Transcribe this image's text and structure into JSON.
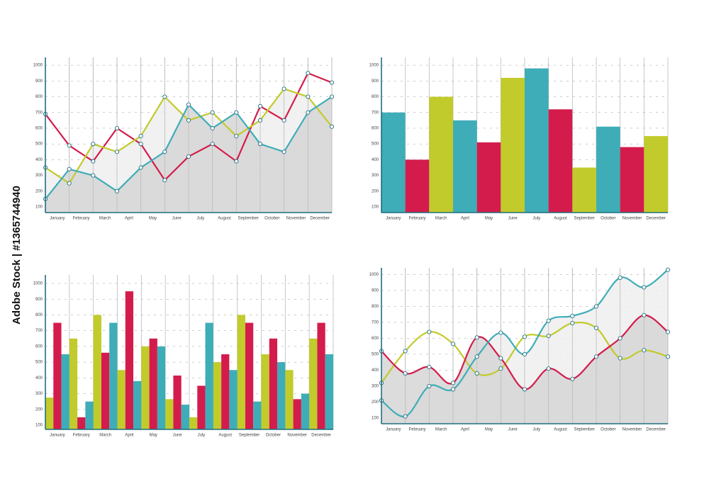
{
  "watermark": "Adobe Stock | #1365744940",
  "chart_data": [
    {
      "type": "line",
      "smooth": false,
      "categories": [
        "January",
        "February",
        "March",
        "April",
        "May",
        "June",
        "July",
        "August",
        "September",
        "October",
        "November",
        "December",
        null
      ],
      "series": [
        {
          "name": null,
          "color": "#d41c4c",
          "values": [
            690,
            490,
            390,
            600,
            500,
            270,
            420,
            500,
            390,
            740,
            650,
            950,
            890
          ]
        },
        {
          "name": null,
          "color": "#c1cb2b",
          "values": [
            350,
            250,
            500,
            450,
            550,
            800,
            650,
            700,
            550,
            650,
            850,
            800,
            610
          ]
        },
        {
          "name": null,
          "color": "#3eadb8",
          "values": [
            150,
            340,
            300,
            200,
            350,
            450,
            750,
            600,
            700,
            500,
            450,
            700,
            800
          ]
        }
      ],
      "ylim": [
        64,
        1050
      ],
      "yticks": [
        100,
        200,
        300,
        400,
        500,
        600,
        700,
        800,
        900,
        1000
      ],
      "grid": true
    },
    {
      "type": "bar",
      "categories": [
        "January",
        "February",
        "March",
        "April",
        "May",
        "June",
        "July",
        "August",
        "September",
        "October",
        "November",
        "December"
      ],
      "values": [
        700,
        400,
        800,
        650,
        510,
        920,
        980,
        720,
        350,
        610,
        480,
        550
      ],
      "colors": [
        "#3eadb8",
        "#d41c4c",
        "#c1cb2b",
        "#3eadb8",
        "#d41c4c",
        "#c1cb2b",
        "#3eadb8",
        "#d41c4c",
        "#c1cb2b",
        "#3eadb8",
        "#d41c4c",
        "#c1cb2b"
      ],
      "ylim": [
        64,
        1050
      ],
      "yticks": [
        100,
        200,
        300,
        400,
        500,
        600,
        700,
        800,
        900,
        1000
      ],
      "grid": true
    },
    {
      "type": "grouped-bar",
      "categories": [
        "January",
        "February",
        "March",
        "April",
        "May",
        "June",
        "July",
        "August",
        "September",
        "October",
        "November",
        "December"
      ],
      "series": [
        {
          "name": null,
          "color": "#c1cb2b",
          "values": [
            275,
            650,
            800,
            450,
            600,
            265,
            150,
            500,
            800,
            550,
            450,
            650
          ]
        },
        {
          "name": null,
          "color": "#d41c4c",
          "values": [
            750,
            150,
            560,
            950,
            650,
            415,
            350,
            550,
            750,
            650,
            265,
            750
          ]
        },
        {
          "name": null,
          "color": "#3eadb8",
          "values": [
            550,
            250,
            750,
            380,
            600,
            230,
            750,
            450,
            250,
            500,
            300,
            550
          ]
        }
      ],
      "ylim": [
        73,
        1054
      ],
      "yticks": [
        100,
        200,
        300,
        400,
        500,
        600,
        700,
        800,
        900,
        1000
      ],
      "grid": true
    },
    {
      "type": "line",
      "smooth": true,
      "categories": [
        "January",
        "February",
        "March",
        "April",
        "May",
        "June",
        "July",
        "August",
        "September",
        "October",
        "November",
        "December",
        null
      ],
      "series": [
        {
          "name": null,
          "color": "#c1cb2b",
          "values": [
            320,
            520,
            640,
            565,
            380,
            410,
            610,
            615,
            695,
            665,
            475,
            525,
            485
          ]
        },
        {
          "name": null,
          "color": "#d41c4c",
          "values": [
            520,
            380,
            420,
            320,
            605,
            475,
            280,
            410,
            345,
            485,
            600,
            745,
            640
          ]
        },
        {
          "name": null,
          "color": "#3eadb8",
          "values": [
            210,
            110,
            300,
            280,
            485,
            635,
            500,
            710,
            740,
            800,
            980,
            920,
            1030
          ]
        }
      ],
      "ylim": [
        64,
        1042
      ],
      "yticks": [
        100,
        200,
        300,
        400,
        500,
        600,
        700,
        800,
        900,
        1000
      ],
      "grid": true
    }
  ]
}
